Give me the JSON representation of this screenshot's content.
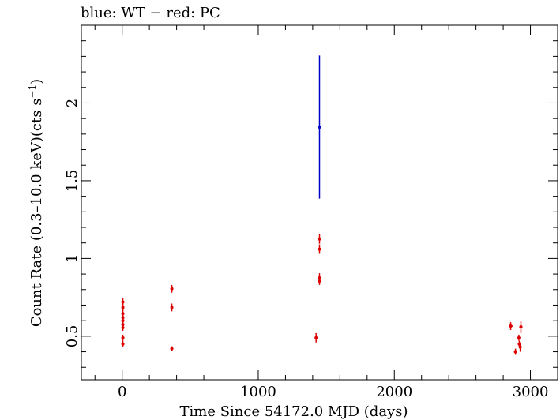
{
  "chart_data": {
    "type": "scatter",
    "title": "blue: WT − red: PC",
    "xlabel": "Time Since 54172.0 MJD (days)",
    "ylabel_main": "Count Rate (0.3–10.0 keV)(cts s",
    "ylabel_sup": "−1",
    "ylabel_end": ")",
    "xlim": [
      -300,
      3200
    ],
    "ylim": [
      0.22,
      2.5
    ],
    "x_ticks": [
      0,
      1000,
      2000,
      3000
    ],
    "y_ticks": [
      0.5,
      1,
      1.5,
      2
    ],
    "x_tick_labels": [
      "0",
      "1000",
      "2000",
      "3000"
    ],
    "y_tick_labels": [
      "0.5",
      "1",
      "1.5",
      "2"
    ],
    "grid": false,
    "series": [
      {
        "name": "WT",
        "color": "#0000cc",
        "points": [
          {
            "x": 1450,
            "y": 1.845,
            "yerr": 0.46,
            "xerr": 2
          }
        ]
      },
      {
        "name": "PC",
        "color": "#dd0000",
        "points": [
          {
            "x": 5,
            "y": 0.72,
            "yerr": 0.025,
            "xerr": 3
          },
          {
            "x": 5,
            "y": 0.685,
            "yerr": 0.025,
            "xerr": 3
          },
          {
            "x": 5,
            "y": 0.645,
            "yerr": 0.025,
            "xerr": 3
          },
          {
            "x": 5,
            "y": 0.62,
            "yerr": 0.025,
            "xerr": 3
          },
          {
            "x": 5,
            "y": 0.6,
            "yerr": 0.025,
            "xerr": 3
          },
          {
            "x": 5,
            "y": 0.575,
            "yerr": 0.025,
            "xerr": 3
          },
          {
            "x": 5,
            "y": 0.555,
            "yerr": 0.02,
            "xerr": 3
          },
          {
            "x": 5,
            "y": 0.49,
            "yerr": 0.02,
            "xerr": 3
          },
          {
            "x": 5,
            "y": 0.45,
            "yerr": 0.02,
            "xerr": 3
          },
          {
            "x": 365,
            "y": 0.805,
            "yerr": 0.025,
            "xerr": 4
          },
          {
            "x": 365,
            "y": 0.685,
            "yerr": 0.025,
            "xerr": 4
          },
          {
            "x": 365,
            "y": 0.42,
            "yerr": 0.015,
            "xerr": 4
          },
          {
            "x": 1425,
            "y": 0.49,
            "yerr": 0.03,
            "xerr": 4
          },
          {
            "x": 1450,
            "y": 1.125,
            "yerr": 0.03,
            "xerr": 4
          },
          {
            "x": 1450,
            "y": 1.06,
            "yerr": 0.03,
            "xerr": 4
          },
          {
            "x": 1450,
            "y": 0.875,
            "yerr": 0.03,
            "xerr": 4
          },
          {
            "x": 1450,
            "y": 0.855,
            "yerr": 0.025,
            "xerr": 4
          },
          {
            "x": 2855,
            "y": 0.565,
            "yerr": 0.025,
            "xerr": 15
          },
          {
            "x": 2890,
            "y": 0.4,
            "yerr": 0.02,
            "xerr": 6
          },
          {
            "x": 2915,
            "y": 0.49,
            "yerr": 0.02,
            "xerr": 5
          },
          {
            "x": 2918,
            "y": 0.45,
            "yerr": 0.02,
            "xerr": 5
          },
          {
            "x": 2925,
            "y": 0.43,
            "yerr": 0.03,
            "xerr": 5
          },
          {
            "x": 2930,
            "y": 0.56,
            "yerr": 0.04,
            "xerr": 12
          }
        ]
      }
    ]
  }
}
